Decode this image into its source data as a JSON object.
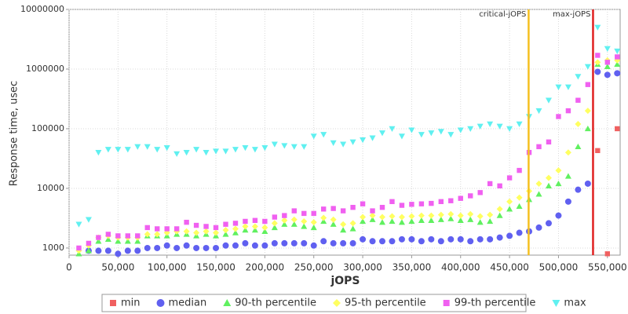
{
  "chart_data": {
    "type": "scatter",
    "x_label": "jOPS",
    "y_label": "Response time, usec",
    "log_y": true,
    "grid": true,
    "xlim": [
      0,
      563000
    ],
    "ylim": [
      760,
      10000000
    ],
    "xticks": [
      0,
      {
        "value": 50000,
        "label": "50,000"
      },
      {
        "value": 100000,
        "label": "100,000"
      },
      {
        "value": 150000,
        "label": "150,000"
      },
      {
        "value": 200000,
        "label": "200,000"
      },
      {
        "value": 250000,
        "label": "250,000"
      },
      {
        "value": 300000,
        "label": "300,000"
      },
      {
        "value": 350000,
        "label": "350,000"
      },
      {
        "value": 400000,
        "label": "400,000"
      },
      {
        "value": 450000,
        "label": "450,000"
      },
      {
        "value": 500000,
        "label": "500,000"
      },
      {
        "value": 550000,
        "label": "550,000"
      }
    ],
    "yticks": [
      1000,
      10000,
      100000,
      1000000,
      10000000
    ],
    "markers": [
      {
        "label": "critical-jOPS",
        "value": 469500,
        "color": "#f5c020"
      },
      {
        "label": "max-jOPS",
        "value": 535300,
        "color": "#e02020"
      }
    ],
    "x": [
      10000,
      20000,
      30000,
      40000,
      50000,
      60000,
      70000,
      80000,
      90000,
      100000,
      110000,
      120000,
      130000,
      140000,
      150000,
      160000,
      170000,
      180000,
      190000,
      200000,
      210000,
      220000,
      230000,
      240000,
      250000,
      260000,
      270000,
      280000,
      290000,
      300000,
      310000,
      320000,
      330000,
      340000,
      350000,
      360000,
      370000,
      380000,
      390000,
      400000,
      410000,
      420000,
      430000,
      440000,
      450000,
      460000,
      470000,
      480000,
      490000,
      500000,
      510000,
      520000,
      530000,
      540000,
      550000,
      560000
    ],
    "series": [
      {
        "name": "min",
        "color": "#f06060",
        "marker": "square",
        "values": [
          null,
          null,
          null,
          null,
          null,
          null,
          null,
          null,
          null,
          null,
          null,
          null,
          null,
          null,
          null,
          null,
          null,
          null,
          null,
          null,
          null,
          null,
          null,
          null,
          null,
          null,
          null,
          null,
          null,
          null,
          null,
          null,
          null,
          null,
          null,
          null,
          null,
          null,
          null,
          null,
          null,
          null,
          null,
          null,
          null,
          null,
          null,
          null,
          null,
          null,
          null,
          null,
          null,
          43000,
          800,
          100000
        ]
      },
      {
        "name": "median",
        "color": "#6060f0",
        "marker": "circle",
        "values": [
          null,
          900,
          900,
          900,
          800,
          900,
          900,
          1000,
          1000,
          1100,
          1000,
          1100,
          1000,
          1000,
          1000,
          1100,
          1100,
          1200,
          1100,
          1100,
          1200,
          1200,
          1200,
          1200,
          1100,
          1300,
          1200,
          1200,
          1200,
          1400,
          1300,
          1300,
          1300,
          1400,
          1400,
          1300,
          1400,
          1300,
          1400,
          1400,
          1300,
          1400,
          1400,
          1500,
          1600,
          1800,
          1900,
          2200,
          2600,
          3500,
          6000,
          9500,
          12000,
          900000,
          800000,
          850000
        ]
      },
      {
        "name": "90-th percentile",
        "color": "#60f060",
        "marker": "triangle",
        "values": [
          800,
          900,
          1300,
          1400,
          1300,
          1300,
          1300,
          1600,
          1600,
          1600,
          1700,
          1700,
          1600,
          1700,
          1600,
          1700,
          1800,
          2000,
          2000,
          1900,
          2200,
          2500,
          2500,
          2300,
          2200,
          2800,
          2500,
          2000,
          2100,
          2800,
          3000,
          2700,
          2800,
          2700,
          2800,
          2900,
          2900,
          3000,
          3100,
          2900,
          3000,
          2700,
          2800,
          3500,
          4500,
          5000,
          6500,
          8000,
          11000,
          12000,
          16000,
          50000,
          100000,
          1200000,
          1100000,
          1200000
        ]
      },
      {
        "name": "95-th percentile",
        "color": "#ffff60",
        "marker": "diamond",
        "values": [
          900,
          1100,
          1500,
          1600,
          1500,
          1500,
          1500,
          1700,
          1700,
          1800,
          1900,
          1900,
          1800,
          1900,
          1800,
          2000,
          2100,
          2300,
          2300,
          2200,
          2600,
          2900,
          3000,
          2800,
          2700,
          3200,
          3000,
          2500,
          2600,
          3300,
          3500,
          3300,
          3400,
          3300,
          3400,
          3500,
          3500,
          3600,
          3700,
          3500,
          3700,
          3400,
          3600,
          4500,
          6000,
          7000,
          9000,
          12000,
          15000,
          20000,
          40000,
          120000,
          200000,
          1300000,
          1400000,
          1400000
        ]
      },
      {
        "name": "99-th percentile",
        "color": "#f060f0",
        "marker": "square",
        "values": [
          1000,
          1200,
          1500,
          1700,
          1600,
          1600,
          1600,
          2200,
          2100,
          2100,
          2100,
          2700,
          2400,
          2300,
          2200,
          2500,
          2600,
          2800,
          2900,
          2800,
          3300,
          3500,
          4200,
          3800,
          3800,
          4500,
          4600,
          4200,
          4800,
          5500,
          4200,
          4800,
          6000,
          5200,
          5400,
          5500,
          5600,
          6000,
          6200,
          6800,
          7500,
          8500,
          12000,
          11000,
          15000,
          20000,
          40000,
          50000,
          60000,
          160000,
          200000,
          300000,
          550000,
          1700000,
          1300000,
          1600000
        ]
      },
      {
        "name": "max",
        "color": "#60f0f0",
        "marker": "triangle-down",
        "values": [
          2500,
          3000,
          40000,
          45000,
          45000,
          45000,
          50000,
          50000,
          45000,
          48000,
          38000,
          40000,
          45000,
          40000,
          42000,
          42000,
          45000,
          48000,
          45000,
          48000,
          55000,
          52000,
          50000,
          50000,
          75000,
          80000,
          58000,
          55000,
          60000,
          65000,
          70000,
          85000,
          100000,
          75000,
          95000,
          80000,
          85000,
          90000,
          80000,
          95000,
          100000,
          110000,
          120000,
          110000,
          100000,
          120000,
          160000,
          200000,
          300000,
          500000,
          500000,
          750000,
          1100000,
          5000000,
          2200000,
          2000000
        ]
      }
    ]
  }
}
